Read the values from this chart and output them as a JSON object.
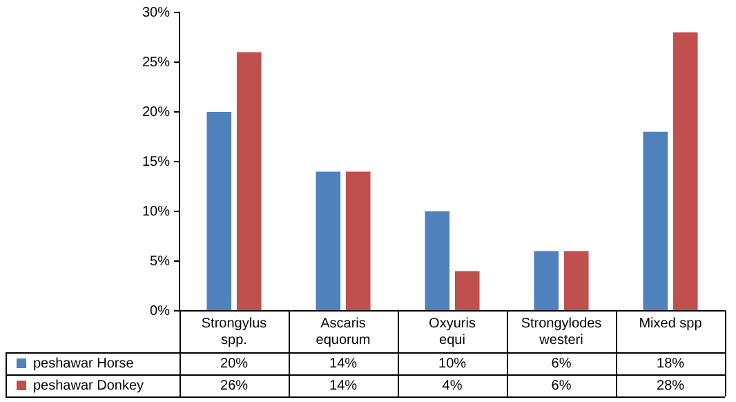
{
  "chart_data": {
    "type": "bar",
    "categories": [
      "Strongylus spp.",
      "Ascaris equorum",
      "Oxyuris equi",
      "Strongylodes westeri",
      "Mixed spp"
    ],
    "series": [
      {
        "name": "peshawar Horse",
        "color": "#4f81bd",
        "values": [
          20,
          14,
          10,
          6,
          18
        ]
      },
      {
        "name": "peshawar Donkey",
        "color": "#c0504d",
        "values": [
          26,
          14,
          4,
          6,
          28
        ]
      }
    ],
    "ylim": [
      0,
      30
    ],
    "yticks": [
      {
        "value": 0,
        "label": "0%"
      },
      {
        "value": 5,
        "label": "5%"
      },
      {
        "value": 10,
        "label": "10%"
      },
      {
        "value": 15,
        "label": "15%"
      },
      {
        "value": 20,
        "label": "20%"
      },
      {
        "value": 25,
        "label": "25%"
      },
      {
        "value": 30,
        "label": "30%"
      }
    ],
    "value_labels": [
      [
        "20%",
        "14%",
        "10%",
        "6%",
        "18%"
      ],
      [
        "26%",
        "14%",
        "4%",
        "6%",
        "28%"
      ]
    ],
    "legend": "bottom"
  }
}
